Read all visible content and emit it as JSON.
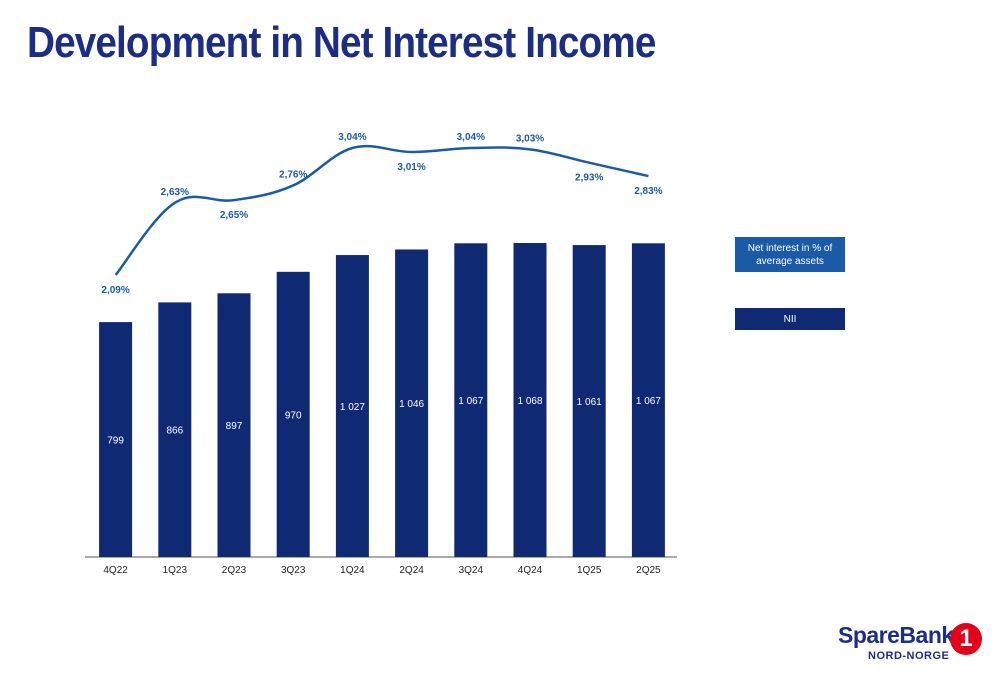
{
  "header": {
    "title": "Development in Net Interest Income"
  },
  "colors": {
    "bar": "#0f2a72",
    "line": "#1a5aa6",
    "title": "#1c2d84",
    "axis": "#555555",
    "logo_red": "#e3001b"
  },
  "legend": {
    "line_label": "Net interest in % of average assets",
    "bar_label": "NII"
  },
  "logo": {
    "name": "SpareBank",
    "badge": "1",
    "sub": "NORD-NORGE"
  },
  "chart_data": {
    "type": "bar",
    "categories": [
      "4Q22",
      "1Q23",
      "2Q23",
      "3Q23",
      "1Q24",
      "2Q24",
      "3Q24",
      "4Q24",
      "1Q25",
      "2Q25"
    ],
    "series": [
      {
        "name": "NII",
        "type": "bar",
        "values": [
          799,
          866,
          897,
          970,
          1027,
          1046,
          1067,
          1068,
          1061,
          1067
        ],
        "labels": [
          "799",
          "866",
          "897",
          "970",
          "1 027",
          "1 046",
          "1 067",
          "1 068",
          "1 061",
          "1 067"
        ]
      },
      {
        "name": "Net interest in % of average assets",
        "type": "line",
        "values": [
          2.09,
          2.63,
          2.65,
          2.76,
          3.04,
          3.01,
          3.04,
          3.03,
          2.93,
          2.83
        ],
        "labels": [
          "2,09%",
          "2,63%",
          "2,65%",
          "2,76%",
          "3,04%",
          "3,01%",
          "3,04%",
          "3,03%",
          "2,93%",
          "2,83%"
        ]
      }
    ],
    "legend_position": "right",
    "grid": false
  }
}
